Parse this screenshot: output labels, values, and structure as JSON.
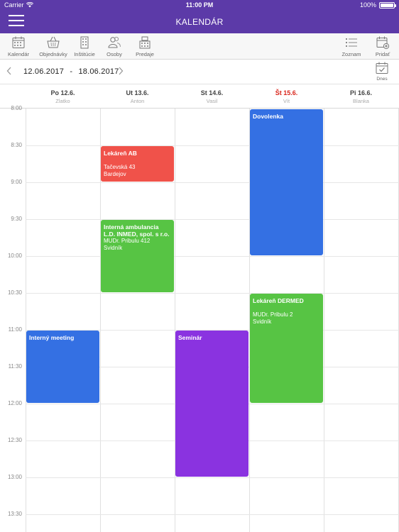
{
  "status_bar": {
    "carrier": "Carrier",
    "time": "11:00 PM",
    "battery": "100%"
  },
  "header": {
    "title": "KALENDÁR"
  },
  "toolbar": {
    "items": [
      {
        "label": "Kalendár",
        "icon": "calendar-icon"
      },
      {
        "label": "Objednávky",
        "icon": "basket-icon"
      },
      {
        "label": "Inštitúcie",
        "icon": "building-icon"
      },
      {
        "label": "Osoby",
        "icon": "people-icon"
      },
      {
        "label": "Predaje",
        "icon": "register-icon"
      }
    ],
    "right_items": [
      {
        "label": "Zoznam",
        "icon": "list-icon"
      },
      {
        "label": "Pridať",
        "icon": "add-calendar-icon"
      }
    ]
  },
  "date_nav": {
    "range_start": "12.06.2017",
    "separator": "-",
    "range_end": "18.06.2017",
    "today_label": "Dnes"
  },
  "days": [
    {
      "name": "Po 12.6.",
      "person": "Zlatko"
    },
    {
      "name": "Ut 13.6.",
      "person": "Anton"
    },
    {
      "name": "St 14.6.",
      "person": "Vasil"
    },
    {
      "name": "Št 15.6.",
      "person": "Vít"
    },
    {
      "name": "Pi 16.6.",
      "person": "Blanka"
    }
  ],
  "today_index": 3,
  "colors": {
    "header_bg": "#5c3aa8",
    "today_text": "#d9261c",
    "event_red": "#f0524a",
    "event_green": "#57c444",
    "event_blue": "#3470e3",
    "event_purple": "#8a33e0"
  },
  "time_labels": [
    "8:00",
    "8:30",
    "9:00",
    "9:30",
    "10:00",
    "10:30",
    "11:00",
    "11:30",
    "12:00",
    "12:30",
    "13:00",
    "13:30"
  ],
  "events": [
    {
      "day": 1,
      "start": "8:30",
      "end": "9:00",
      "title": "Lekáreň AB",
      "lines": [
        "",
        "Tačevská 43",
        "Bardejov"
      ],
      "color": "#f0524a"
    },
    {
      "day": 1,
      "start": "9:30",
      "end": "10:30",
      "title": "Interná ambulancia L.D. INMED, spol. s r.o.",
      "lines": [
        "MUDr. Pribulu 412",
        "Svidník"
      ],
      "color": "#57c444"
    },
    {
      "day": 3,
      "start": "8:00",
      "end": "10:00",
      "title": "Dovolenka",
      "lines": [],
      "color": "#3470e3"
    },
    {
      "day": 3,
      "start": "10:30",
      "end": "12:00",
      "title": "Lekáreň DERMED",
      "lines": [
        "",
        "MUDr. Pribulu 2",
        "Svidník"
      ],
      "color": "#57c444"
    },
    {
      "day": 0,
      "start": "11:00",
      "end": "12:00",
      "title": "Interný meeting",
      "lines": [],
      "color": "#3470e3"
    },
    {
      "day": 2,
      "start": "11:00",
      "end": "13:00",
      "title": "Seminár",
      "lines": [],
      "color": "#8a33e0"
    }
  ]
}
